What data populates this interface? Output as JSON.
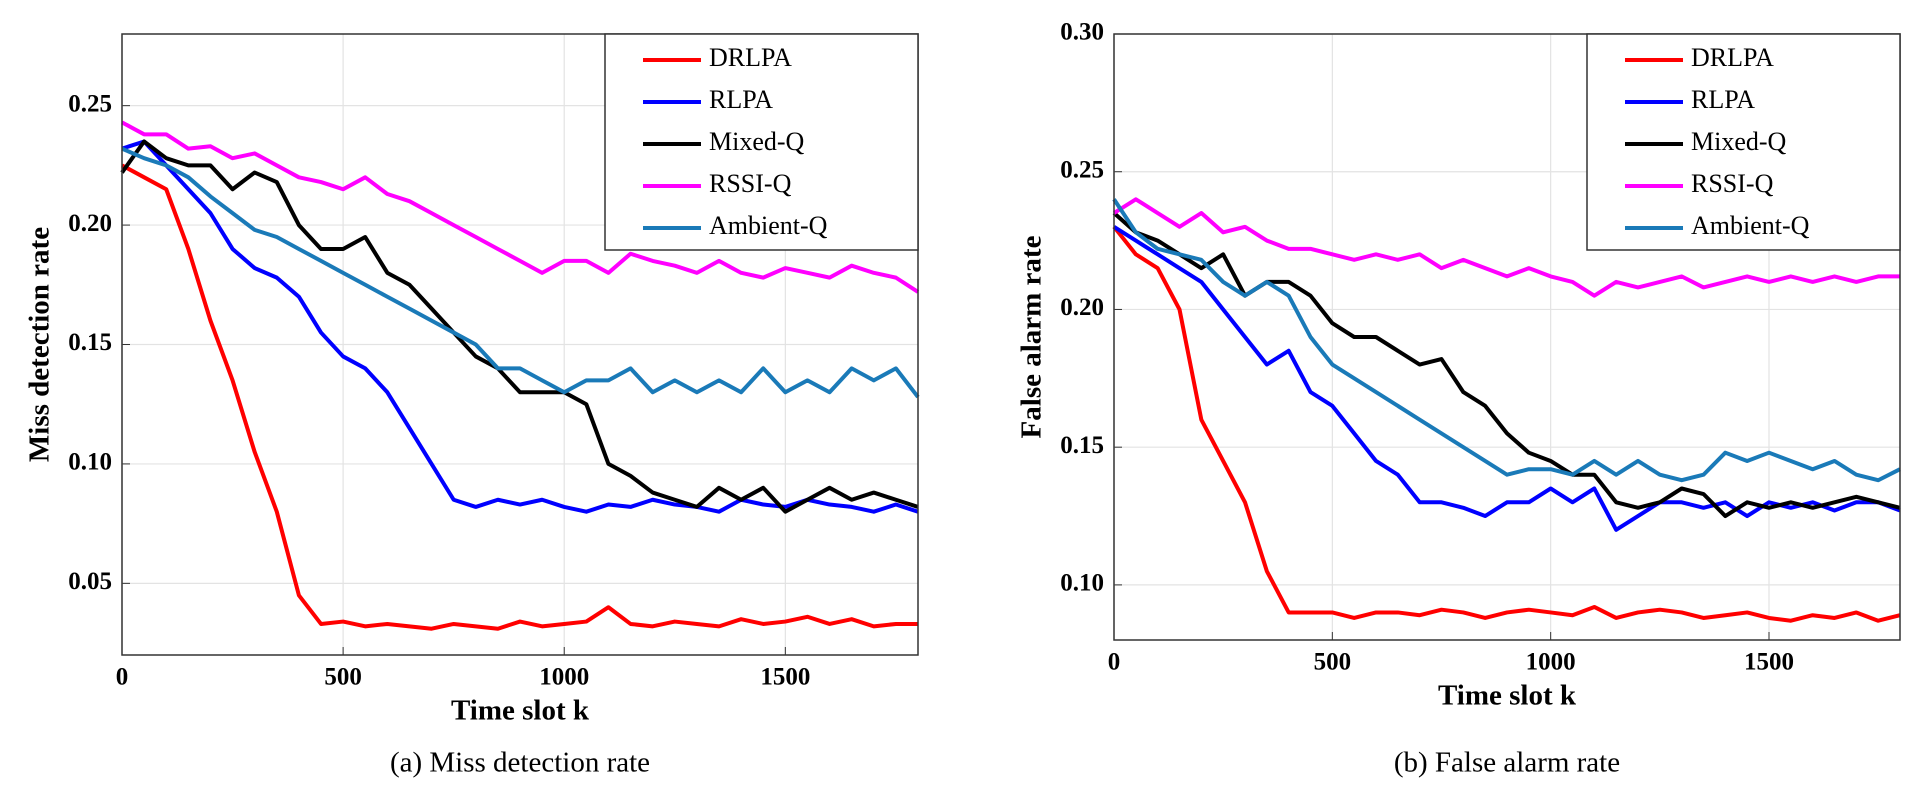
{
  "chart_data": [
    {
      "type": "line",
      "y_label": "Miss detection rate",
      "x_label": "Time slot k",
      "caption": "(a) Miss detection rate",
      "xlim": [
        0,
        1800
      ],
      "xticks": [
        0,
        500,
        1000,
        1500
      ],
      "ylim": [
        0.02,
        0.28
      ],
      "yticks": [
        0.05,
        {
          "value": 0.1,
          "label": "0.10"
        },
        0.15,
        {
          "value": 0.2,
          "label": "0.20"
        },
        0.25
      ],
      "grid": true,
      "legend": "upper right",
      "x": [
        0,
        50,
        100,
        150,
        200,
        250,
        300,
        350,
        400,
        450,
        500,
        550,
        600,
        650,
        700,
        750,
        800,
        850,
        900,
        950,
        1000,
        1050,
        1100,
        1150,
        1200,
        1250,
        1300,
        1350,
        1400,
        1450,
        1500,
        1550,
        1600,
        1650,
        1700,
        1750,
        1800
      ],
      "series": [
        {
          "name": "DRLPA",
          "color": "#ff0000",
          "values": [
            0.225,
            0.22,
            0.215,
            0.19,
            0.16,
            0.135,
            0.105,
            0.08,
            0.045,
            0.033,
            0.034,
            0.032,
            0.033,
            0.032,
            0.031,
            0.033,
            0.032,
            0.031,
            0.034,
            0.032,
            0.033,
            0.034,
            0.04,
            0.033,
            0.032,
            0.034,
            0.033,
            0.032,
            0.035,
            0.033,
            0.034,
            0.036,
            0.033,
            0.035,
            0.032,
            0.033,
            0.033
          ]
        },
        {
          "name": "RLPA",
          "color": "#0000ff",
          "values": [
            0.232,
            0.235,
            0.225,
            0.215,
            0.205,
            0.19,
            0.182,
            0.178,
            0.17,
            0.155,
            0.145,
            0.14,
            0.13,
            0.115,
            0.1,
            0.085,
            0.082,
            0.085,
            0.083,
            0.085,
            0.082,
            0.08,
            0.083,
            0.082,
            0.085,
            0.083,
            0.082,
            0.08,
            0.085,
            0.083,
            0.082,
            0.085,
            0.083,
            0.082,
            0.08,
            0.083,
            0.08
          ]
        },
        {
          "name": "Mixed-Q",
          "color": "#000000",
          "values": [
            0.222,
            0.235,
            0.228,
            0.225,
            0.225,
            0.215,
            0.222,
            0.218,
            0.2,
            0.19,
            0.19,
            0.195,
            0.18,
            0.175,
            0.165,
            0.155,
            0.145,
            0.14,
            0.13,
            0.13,
            0.13,
            0.125,
            0.1,
            0.095,
            0.088,
            0.085,
            0.082,
            0.09,
            0.085,
            0.09,
            0.08,
            0.085,
            0.09,
            0.085,
            0.088,
            0.085,
            0.082
          ]
        },
        {
          "name": "RSSI-Q",
          "color": "#ff00ff",
          "values": [
            0.243,
            0.238,
            0.238,
            0.232,
            0.233,
            0.228,
            0.23,
            0.225,
            0.22,
            0.218,
            0.215,
            0.22,
            0.213,
            0.21,
            0.205,
            0.2,
            0.195,
            0.19,
            0.185,
            0.18,
            0.185,
            0.185,
            0.18,
            0.188,
            0.185,
            0.183,
            0.18,
            0.185,
            0.18,
            0.178,
            0.182,
            0.18,
            0.178,
            0.183,
            0.18,
            0.178,
            0.172
          ]
        },
        {
          "name": "Ambient-Q",
          "color": "#1a7ab8",
          "values": [
            0.232,
            0.228,
            0.225,
            0.22,
            0.212,
            0.205,
            0.198,
            0.195,
            0.19,
            0.185,
            0.18,
            0.175,
            0.17,
            0.165,
            0.16,
            0.155,
            0.15,
            0.14,
            0.14,
            0.135,
            0.13,
            0.135,
            0.135,
            0.14,
            0.13,
            0.135,
            0.13,
            0.135,
            0.13,
            0.14,
            0.13,
            0.135,
            0.13,
            0.14,
            0.135,
            0.14,
            0.128
          ]
        }
      ]
    },
    {
      "type": "line",
      "y_label": "False alarm rate",
      "x_label": "Time slot k",
      "caption": "(b) False alarm rate",
      "xlim": [
        0,
        1800
      ],
      "xticks": [
        0,
        500,
        1000,
        1500
      ],
      "ylim": [
        0.08,
        0.3
      ],
      "yticks": [
        {
          "value": 0.1,
          "label": "0.10"
        },
        0.15,
        {
          "value": 0.2,
          "label": "0.20"
        },
        0.25,
        {
          "value": 0.3,
          "label": "0.30"
        }
      ],
      "grid": true,
      "legend": "upper right",
      "x": [
        0,
        50,
        100,
        150,
        200,
        250,
        300,
        350,
        400,
        450,
        500,
        550,
        600,
        650,
        700,
        750,
        800,
        850,
        900,
        950,
        1000,
        1050,
        1100,
        1150,
        1200,
        1250,
        1300,
        1350,
        1400,
        1450,
        1500,
        1550,
        1600,
        1650,
        1700,
        1750,
        1800
      ],
      "series": [
        {
          "name": "DRLPA",
          "color": "#ff0000",
          "values": [
            0.23,
            0.22,
            0.215,
            0.2,
            0.16,
            0.145,
            0.13,
            0.105,
            0.09,
            0.09,
            0.09,
            0.088,
            0.09,
            0.09,
            0.089,
            0.091,
            0.09,
            0.088,
            0.09,
            0.091,
            0.09,
            0.089,
            0.092,
            0.088,
            0.09,
            0.091,
            0.09,
            0.088,
            0.089,
            0.09,
            0.088,
            0.087,
            0.089,
            0.088,
            0.09,
            0.087,
            0.089
          ]
        },
        {
          "name": "RLPA",
          "color": "#0000ff",
          "values": [
            0.23,
            0.225,
            0.22,
            0.215,
            0.21,
            0.2,
            0.19,
            0.18,
            0.185,
            0.17,
            0.165,
            0.155,
            0.145,
            0.14,
            0.13,
            0.13,
            0.128,
            0.125,
            0.13,
            0.13,
            0.135,
            0.13,
            0.135,
            0.12,
            0.125,
            0.13,
            0.13,
            0.128,
            0.13,
            0.125,
            0.13,
            0.128,
            0.13,
            0.127,
            0.13,
            0.13,
            0.127
          ]
        },
        {
          "name": "Mixed-Q",
          "color": "#000000",
          "values": [
            0.235,
            0.228,
            0.225,
            0.22,
            0.215,
            0.22,
            0.205,
            0.21,
            0.21,
            0.205,
            0.195,
            0.19,
            0.19,
            0.185,
            0.18,
            0.182,
            0.17,
            0.165,
            0.155,
            0.148,
            0.145,
            0.14,
            0.14,
            0.13,
            0.128,
            0.13,
            0.135,
            0.133,
            0.125,
            0.13,
            0.128,
            0.13,
            0.128,
            0.13,
            0.132,
            0.13,
            0.128
          ]
        },
        {
          "name": "RSSI-Q",
          "color": "#ff00ff",
          "values": [
            0.235,
            0.24,
            0.235,
            0.23,
            0.235,
            0.228,
            0.23,
            0.225,
            0.222,
            0.222,
            0.22,
            0.218,
            0.22,
            0.218,
            0.22,
            0.215,
            0.218,
            0.215,
            0.212,
            0.215,
            0.212,
            0.21,
            0.205,
            0.21,
            0.208,
            0.21,
            0.212,
            0.208,
            0.21,
            0.212,
            0.21,
            0.212,
            0.21,
            0.212,
            0.21,
            0.212,
            0.212
          ]
        },
        {
          "name": "Ambient-Q",
          "color": "#1a7ab8",
          "values": [
            0.24,
            0.228,
            0.222,
            0.22,
            0.218,
            0.21,
            0.205,
            0.21,
            0.205,
            0.19,
            0.18,
            0.175,
            0.17,
            0.165,
            0.16,
            0.155,
            0.15,
            0.145,
            0.14,
            0.142,
            0.142,
            0.14,
            0.145,
            0.14,
            0.145,
            0.14,
            0.138,
            0.14,
            0.148,
            0.145,
            0.148,
            0.145,
            0.142,
            0.145,
            0.14,
            0.138,
            0.142
          ]
        }
      ]
    }
  ]
}
